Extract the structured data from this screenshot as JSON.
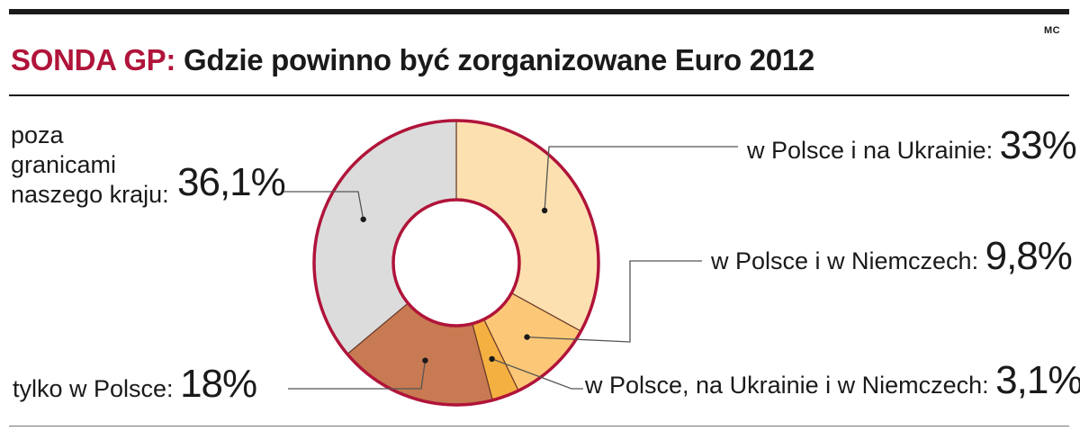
{
  "header": {
    "prefix": "SONDA GP:",
    "title": "Gdzie powinno być zorganizowane Euro 2012",
    "credit": "MC"
  },
  "chart_data": {
    "type": "pie",
    "style": "donut",
    "title": "SONDA GP: Gdzie powinno być zorganizowane Euro 2012",
    "slices": [
      {
        "label": "w Polsce i na Ukrainie",
        "value": 33,
        "display": "33%",
        "color": "#fde0b0"
      },
      {
        "label": "w Polsce i w Niemczech",
        "value": 9.8,
        "display": "9,8%",
        "color": "#fcc878"
      },
      {
        "label": "w Polsce, na Ukrainie i w Niemczech",
        "value": 3.1,
        "display": "3,1%",
        "color": "#f5b042"
      },
      {
        "label": "tylko w Polsce",
        "value": 18,
        "display": "18%",
        "color": "#c87a52"
      },
      {
        "label": "poza granicami naszego kraju",
        "value": 36.1,
        "display": "36,1%",
        "color": "#dcdcdc"
      }
    ],
    "ring_color": "#b0143a",
    "separator_color": "#6b3a2a"
  },
  "labels": {
    "poza": {
      "line1": "poza",
      "line2": "granicami",
      "line3": "naszego kraju:",
      "pct": "36,1%"
    },
    "ukraina": {
      "text": "w Polsce i na Ukrainie:",
      "pct": "33%"
    },
    "niemcy": {
      "text": "w Polsce i w Niemczech:",
      "pct": "9,8%"
    },
    "trzy": {
      "text": "w Polsce, na Ukrainie i w Niemczech:",
      "pct": "3,1%"
    },
    "tylko": {
      "text": "tylko w Polsce:",
      "pct": "18%"
    }
  }
}
